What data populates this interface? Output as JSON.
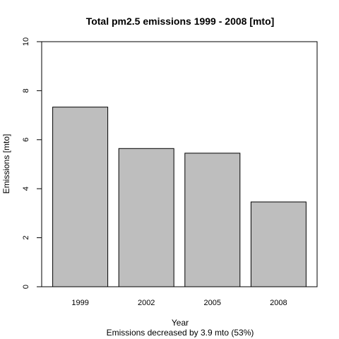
{
  "chart_data": {
    "type": "bar",
    "title": "Total pm2.5 emissions 1999 - 2008 [mto]",
    "xlabel": "Year",
    "ylabel": "Emissions [mto]",
    "subtitle": "Emissions decreased by 3.9 mto (53%)",
    "categories": [
      "1999",
      "2002",
      "2005",
      "2008"
    ],
    "values": [
      7.33,
      5.64,
      5.45,
      3.46
    ],
    "ylim": [
      0,
      10
    ],
    "yticks": [
      0,
      2,
      4,
      6,
      8,
      10
    ],
    "bar_color": "#bebebe",
    "grid": false
  }
}
